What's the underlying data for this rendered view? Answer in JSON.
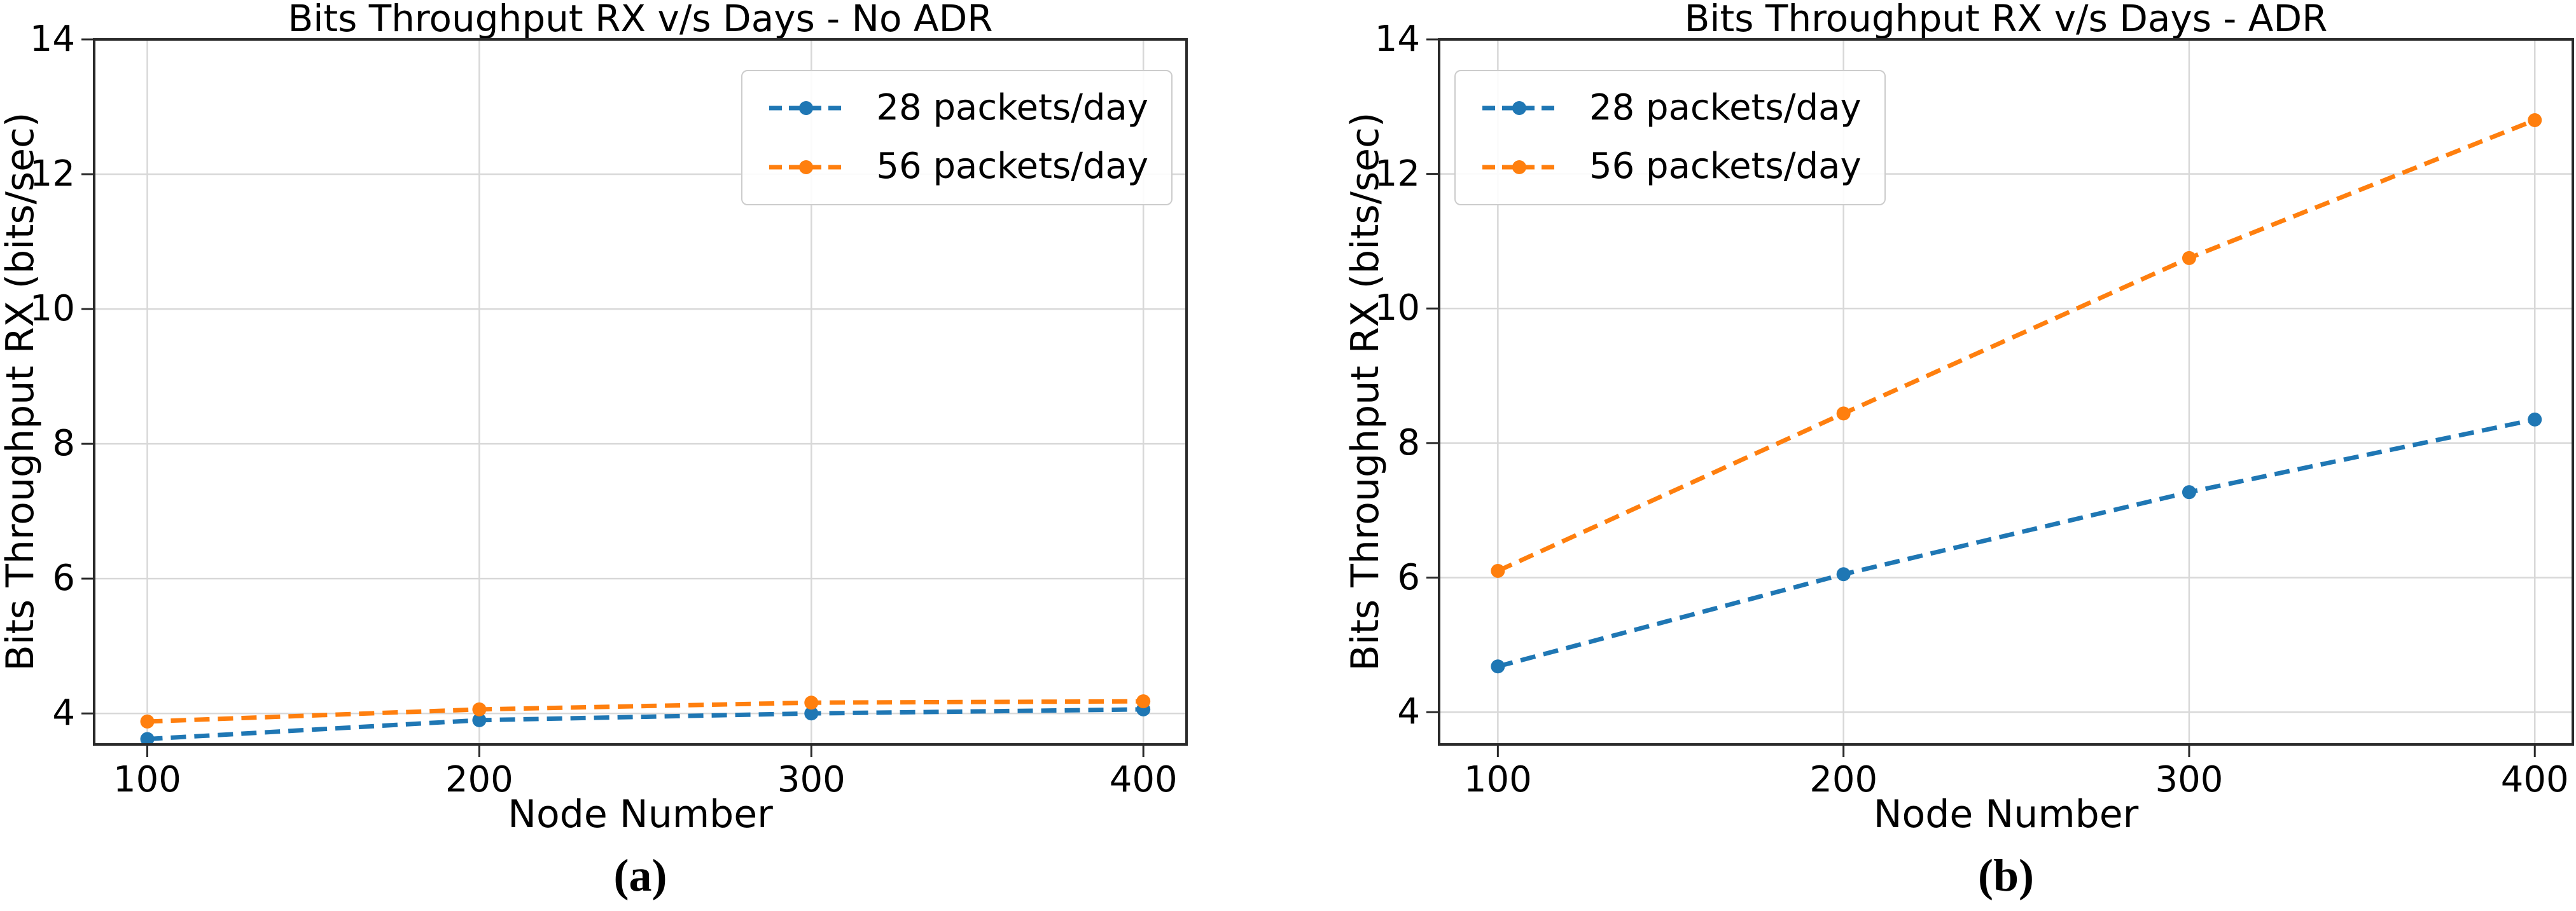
{
  "styles": {
    "background": "#ffffff",
    "grid_color": "#d8d8d8",
    "spine_color": "#2a2a2a",
    "text_color": "#000000",
    "series_blue": "#1f77b4",
    "series_orange": "#ff7f0e"
  },
  "chart_data": [
    {
      "type": "line",
      "title": "Bits Throughput RX v/s Days - No ADR",
      "xlabel": "Node Number",
      "ylabel": "Bits Throughput RX (bits/sec)",
      "caption": "(a)",
      "x": [
        100,
        200,
        300,
        400
      ],
      "x_ticks": [
        100,
        200,
        300,
        400
      ],
      "y_ticks": [
        4,
        6,
        8,
        10,
        12,
        14
      ],
      "xlim": [
        84,
        413
      ],
      "ylim": [
        3.54,
        14
      ],
      "grid": true,
      "line_style": "dashed",
      "marker": "circle",
      "legend_position": "upper-right",
      "series": [
        {
          "name": "28 packets/day",
          "color": "#1f77b4",
          "values": [
            3.62,
            3.9,
            4.0,
            4.06
          ]
        },
        {
          "name": "56 packets/day",
          "color": "#ff7f0e",
          "values": [
            3.88,
            4.06,
            4.16,
            4.18
          ]
        }
      ]
    },
    {
      "type": "line",
      "title": "Bits Throughput RX v/s Days - ADR",
      "xlabel": "Node Number",
      "ylabel": "Bits Throughput RX (bits/sec)",
      "caption": "(b)",
      "x": [
        100,
        200,
        300,
        400
      ],
      "x_ticks": [
        100,
        200,
        300,
        400
      ],
      "y_ticks": [
        4,
        6,
        8,
        10,
        12,
        14
      ],
      "xlim": [
        83,
        411
      ],
      "ylim": [
        3.52,
        14
      ],
      "grid": true,
      "line_style": "dashed",
      "marker": "circle",
      "legend_position": "upper-left",
      "series": [
        {
          "name": "28 packets/day",
          "color": "#1f77b4",
          "values": [
            4.68,
            6.05,
            7.27,
            8.35
          ]
        },
        {
          "name": "56 packets/day",
          "color": "#ff7f0e",
          "values": [
            6.1,
            8.44,
            10.75,
            12.8
          ]
        }
      ]
    }
  ]
}
